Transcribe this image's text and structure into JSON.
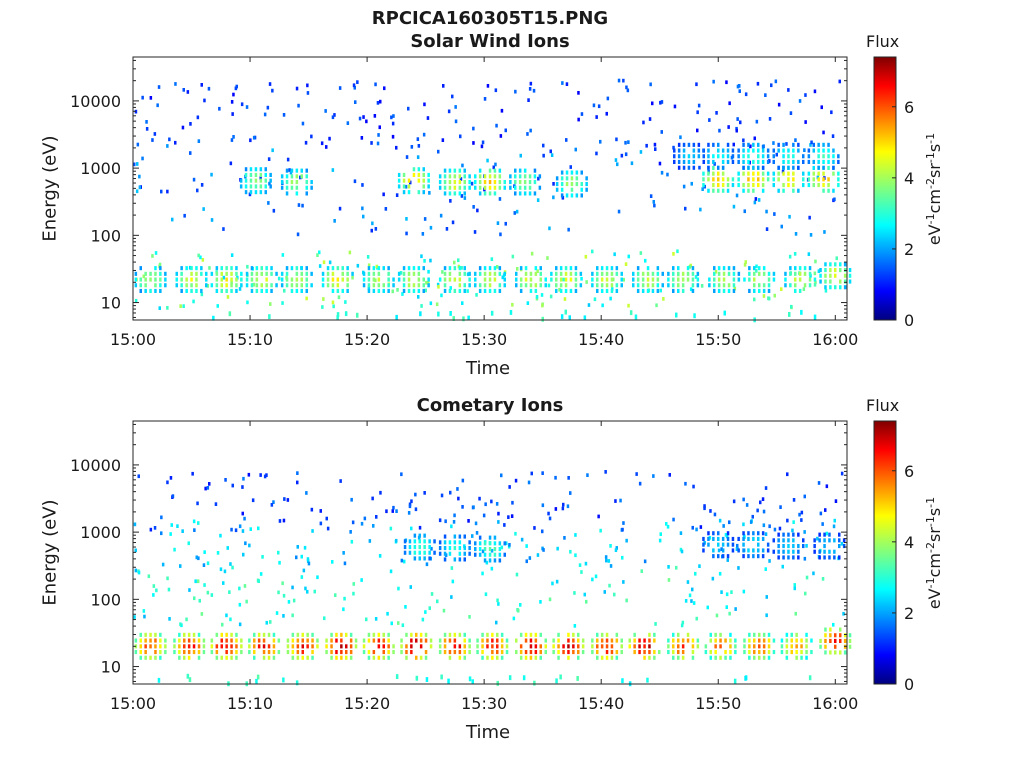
{
  "figure": {
    "title": "RPCICA160305T15.PNG"
  },
  "colormap": [
    "#00007f",
    "#0000ff",
    "#007fff",
    "#00ffff",
    "#7fff7f",
    "#ffff00",
    "#ff7f00",
    "#ff0000",
    "#7f0000"
  ],
  "chart_data": [
    {
      "type": "heatmap",
      "title": "Solar Wind Ions",
      "xlabel": "Time",
      "ylabel": "Energy (eV)",
      "xlim": [
        "15:00",
        "16:01"
      ],
      "x_ticks": [
        "15:00",
        "15:10",
        "15:20",
        "15:30",
        "15:40",
        "15:50",
        "16:00"
      ],
      "y_scale": "log",
      "ylim": [
        5.5,
        45000
      ],
      "y_ticks": [
        "10",
        "100",
        "1000",
        "10000"
      ],
      "colorbar": {
        "label": "Flux",
        "unit_label": "eV-1cm-2sr-1s-1",
        "range": [
          0,
          7.4
        ],
        "ticks": [
          "0",
          "2",
          "4",
          "6"
        ]
      },
      "grid": false,
      "blobs": [
        {
          "t": 1.5,
          "e": 22,
          "v": 4.0
        },
        {
          "t": 5.0,
          "e": 22,
          "v": 4.3
        },
        {
          "t": 8.0,
          "e": 22,
          "v": 4.6
        },
        {
          "t": 11.0,
          "e": 22,
          "v": 4.4
        },
        {
          "t": 14.0,
          "e": 22,
          "v": 4.2
        },
        {
          "t": 17.5,
          "e": 22,
          "v": 4.6
        },
        {
          "t": 21.0,
          "e": 22,
          "v": 4.2
        },
        {
          "t": 24.0,
          "e": 22,
          "v": 4.3
        },
        {
          "t": 27.5,
          "e": 22,
          "v": 4.4
        },
        {
          "t": 30.5,
          "e": 22,
          "v": 4.2
        },
        {
          "t": 34.0,
          "e": 22,
          "v": 4.3
        },
        {
          "t": 37.0,
          "e": 22,
          "v": 4.4
        },
        {
          "t": 40.5,
          "e": 22,
          "v": 4.3
        },
        {
          "t": 44.0,
          "e": 22,
          "v": 4.1
        },
        {
          "t": 47.0,
          "e": 22,
          "v": 4.2
        },
        {
          "t": 50.5,
          "e": 22,
          "v": 4.0
        },
        {
          "t": 53.5,
          "e": 22,
          "v": 4.1
        },
        {
          "t": 57.0,
          "e": 22,
          "v": 4.2
        },
        {
          "t": 60.0,
          "e": 25,
          "v": 4.4
        },
        {
          "t": 10.5,
          "e": 650,
          "v": 3.8
        },
        {
          "t": 14.0,
          "e": 620,
          "v": 4.0
        },
        {
          "t": 24.0,
          "e": 650,
          "v": 4.7
        },
        {
          "t": 27.5,
          "e": 620,
          "v": 4.4
        },
        {
          "t": 30.5,
          "e": 620,
          "v": 4.8
        },
        {
          "t": 33.5,
          "e": 620,
          "v": 3.8
        },
        {
          "t": 37.5,
          "e": 580,
          "v": 3.9
        },
        {
          "t": 50.0,
          "e": 680,
          "v": 4.9
        },
        {
          "t": 53.0,
          "e": 680,
          "v": 5.0
        },
        {
          "t": 56.0,
          "e": 680,
          "v": 4.7
        },
        {
          "t": 59.0,
          "e": 680,
          "v": 4.9
        },
        {
          "t": 47.5,
          "e": 1500,
          "v": 2.4
        },
        {
          "t": 50.0,
          "e": 1500,
          "v": 2.8
        },
        {
          "t": 53.0,
          "e": 1500,
          "v": 3.2
        },
        {
          "t": 56.0,
          "e": 1500,
          "v": 3.0
        },
        {
          "t": 59.0,
          "e": 1500,
          "v": 3.1
        }
      ],
      "scatter": [
        {
          "e_range": [
            8,
            60
          ],
          "v_range": [
            2.4,
            4.3
          ]
        },
        {
          "e_range": [
            100,
            3000
          ],
          "v_range": [
            1.0,
            2.4
          ]
        },
        {
          "e_range": [
            2000,
            20000
          ],
          "v_range": [
            0.9,
            1.8
          ]
        }
      ]
    },
    {
      "type": "heatmap",
      "title": "Cometary Ions",
      "xlabel": "Time",
      "ylabel": "Energy (eV)",
      "xlim": [
        "15:00",
        "16:01"
      ],
      "x_ticks": [
        "15:00",
        "15:10",
        "15:20",
        "15:30",
        "15:40",
        "15:50",
        "16:00"
      ],
      "y_scale": "log",
      "ylim": [
        5.5,
        45000
      ],
      "y_ticks": [
        "10",
        "100",
        "1000",
        "10000"
      ],
      "colorbar": {
        "label": "Flux",
        "unit_label": "eV-1cm-2sr-1s-1",
        "range": [
          0,
          7.4
        ],
        "ticks": [
          "0",
          "2",
          "4",
          "6"
        ]
      },
      "grid": false,
      "blobs": [
        {
          "t": 1.5,
          "e": 20,
          "v": 6.0
        },
        {
          "t": 4.8,
          "e": 20,
          "v": 6.3
        },
        {
          "t": 8.0,
          "e": 20,
          "v": 6.8
        },
        {
          "t": 11.2,
          "e": 20,
          "v": 6.4
        },
        {
          "t": 14.5,
          "e": 20,
          "v": 6.5
        },
        {
          "t": 17.8,
          "e": 20,
          "v": 6.9
        },
        {
          "t": 21.0,
          "e": 20,
          "v": 6.5
        },
        {
          "t": 24.2,
          "e": 20,
          "v": 7.0
        },
        {
          "t": 27.5,
          "e": 20,
          "v": 6.5
        },
        {
          "t": 30.7,
          "e": 20,
          "v": 6.4
        },
        {
          "t": 34.0,
          "e": 20,
          "v": 6.9
        },
        {
          "t": 37.2,
          "e": 20,
          "v": 6.6
        },
        {
          "t": 40.5,
          "e": 20,
          "v": 6.4
        },
        {
          "t": 43.7,
          "e": 20,
          "v": 6.8
        },
        {
          "t": 47.0,
          "e": 20,
          "v": 6.0
        },
        {
          "t": 50.2,
          "e": 20,
          "v": 5.6
        },
        {
          "t": 53.5,
          "e": 20,
          "v": 5.8
        },
        {
          "t": 56.7,
          "e": 20,
          "v": 5.3
        },
        {
          "t": 60.0,
          "e": 24,
          "v": 6.3
        },
        {
          "t": 24.5,
          "e": 600,
          "v": 3.2
        },
        {
          "t": 27.5,
          "e": 580,
          "v": 3.0
        },
        {
          "t": 30.5,
          "e": 560,
          "v": 3.3
        },
        {
          "t": 50.0,
          "e": 650,
          "v": 2.5
        },
        {
          "t": 53.0,
          "e": 650,
          "v": 2.6
        },
        {
          "t": 56.0,
          "e": 620,
          "v": 2.5
        },
        {
          "t": 59.5,
          "e": 620,
          "v": 2.4
        }
      ],
      "scatter": [
        {
          "e_range": [
            40,
            300
          ],
          "v_range": [
            2.2,
            3.6
          ]
        },
        {
          "e_range": [
            300,
            1500
          ],
          "v_range": [
            1.8,
            3.0
          ]
        },
        {
          "e_range": [
            1000,
            8000
          ],
          "v_range": [
            1.0,
            1.9
          ]
        }
      ]
    }
  ]
}
